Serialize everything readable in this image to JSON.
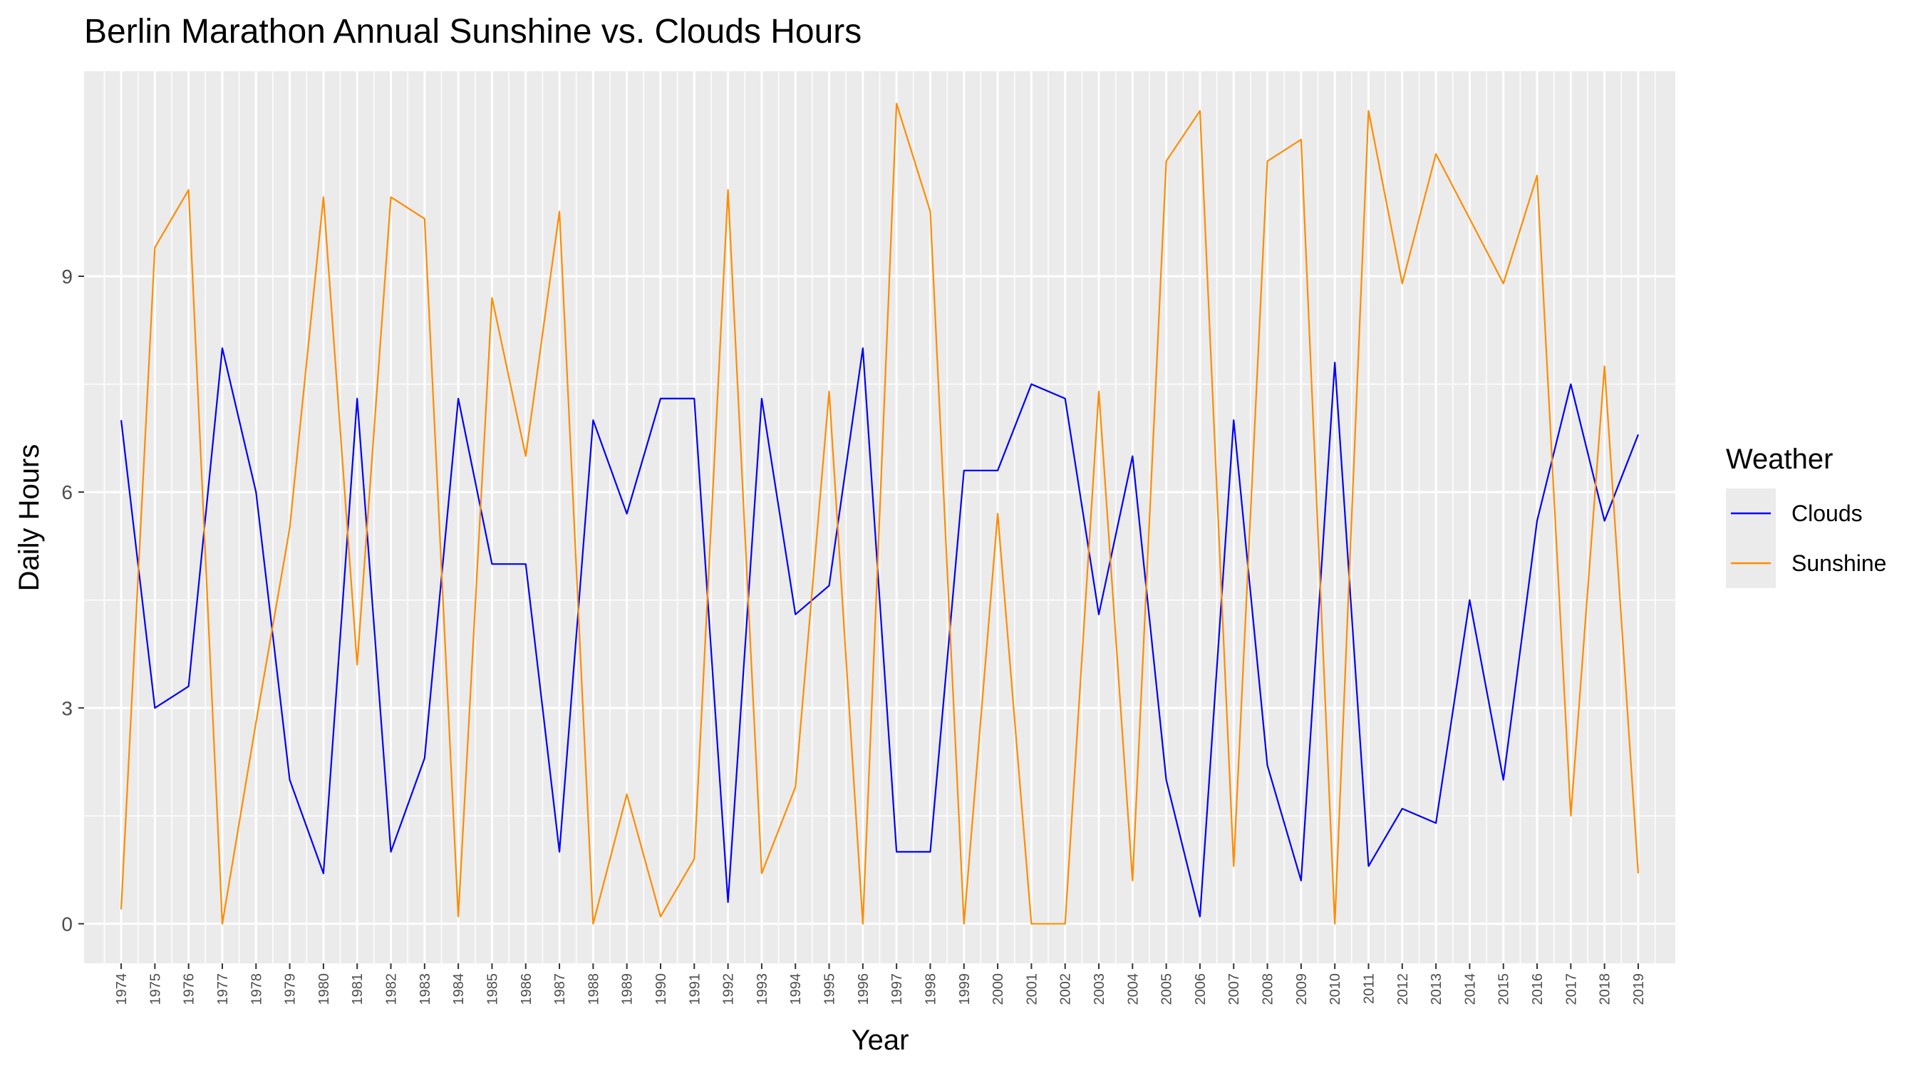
{
  "chart_data": {
    "type": "line",
    "title": "Berlin Marathon Annual Sunshine vs. Clouds Hours",
    "xlabel": "Year",
    "ylabel": "Daily Hours",
    "x": [
      1974,
      1975,
      1976,
      1977,
      1978,
      1979,
      1980,
      1981,
      1982,
      1983,
      1984,
      1985,
      1986,
      1987,
      1988,
      1989,
      1990,
      1991,
      1992,
      1993,
      1994,
      1995,
      1996,
      1997,
      1998,
      1999,
      2000,
      2001,
      2002,
      2003,
      2004,
      2005,
      2006,
      2007,
      2008,
      2009,
      2010,
      2011,
      2012,
      2013,
      2014,
      2015,
      2016,
      2017,
      2018,
      2019
    ],
    "x_tick_labels": [
      "1974",
      "1975",
      "1976",
      "1977",
      "1978",
      "1979",
      "1980",
      "1981",
      "1982",
      "1983",
      "1984",
      "1985",
      "1986",
      "1987",
      "1988",
      "1989",
      "1990",
      "1991",
      "1992",
      "1993",
      "1994",
      "1995",
      "1996",
      "1997",
      "1998",
      "1999",
      "2000",
      "2001",
      "2002",
      "2003",
      "2004",
      "2005",
      "2006",
      "2007",
      "2008",
      "2009",
      "2010",
      "2011",
      "2012",
      "2013",
      "2014",
      "2015",
      "2016",
      "2017",
      "2018",
      "2019"
    ],
    "y_ticks": [
      0,
      3,
      6,
      9
    ],
    "y_tick_labels": [
      "0",
      "3",
      "6",
      "9"
    ],
    "ylim": [
      -0.55,
      11.85
    ],
    "xlim": [
      1972.9,
      2020.1
    ],
    "grid": true,
    "legend": {
      "title": "Weather",
      "placement": "right"
    },
    "series": [
      {
        "name": "Clouds",
        "color": "#0000ff",
        "values": [
          7.0,
          3.0,
          3.3,
          8.0,
          6.0,
          2.0,
          0.7,
          7.3,
          1.0,
          2.3,
          7.3,
          5.0,
          5.0,
          1.0,
          7.0,
          5.7,
          7.3,
          7.3,
          0.3,
          7.3,
          4.3,
          4.7,
          8.0,
          1.0,
          1.0,
          6.3,
          6.3,
          7.5,
          7.3,
          4.3,
          6.5,
          2.0,
          0.1,
          7.0,
          2.2,
          0.6,
          7.8,
          0.8,
          1.6,
          1.4,
          4.5,
          2.0,
          5.6,
          7.5,
          5.6,
          6.8
        ]
      },
      {
        "name": "Sunshine",
        "color": "#ff8c00",
        "values": [
          0.2,
          9.4,
          10.2,
          0.0,
          2.8,
          5.5,
          10.1,
          3.6,
          10.1,
          9.8,
          0.1,
          8.7,
          6.5,
          9.9,
          0.0,
          1.8,
          0.1,
          0.9,
          10.2,
          0.7,
          1.9,
          7.4,
          0.0,
          11.4,
          9.9,
          0.0,
          5.7,
          0.0,
          0.0,
          7.4,
          0.6,
          10.6,
          11.3,
          0.8,
          10.6,
          10.9,
          0.0,
          11.3,
          8.9,
          10.7,
          9.8,
          8.9,
          10.4,
          1.5,
          7.75,
          0.7
        ]
      }
    ]
  }
}
